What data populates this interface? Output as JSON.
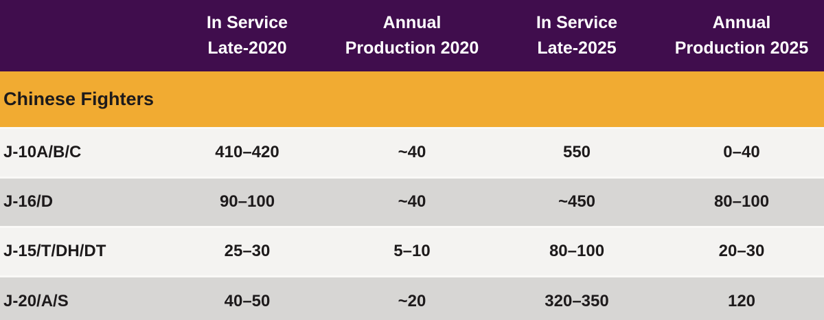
{
  "colors": {
    "header_bg": "#400D4D",
    "section_bg": "#F1AB32",
    "row_light_bg": "#F4F3F1",
    "row_dark_bg": "#D7D6D4",
    "separator": "#FAF9F7",
    "header_text": "#FFFFFF",
    "body_text": "#1D1A1B"
  },
  "table": {
    "header": {
      "columns": [
        {
          "line1": "",
          "line2": ""
        },
        {
          "line1": "In Service",
          "line2": "Late-2020"
        },
        {
          "line1": "Annual",
          "line2": "Production 2020"
        },
        {
          "line1": "In Service",
          "line2": "Late-2025"
        },
        {
          "line1": "Annual",
          "line2": "Production 2025"
        }
      ]
    },
    "section_label": "Chinese Fighters",
    "rows": [
      {
        "label": "J-10A/B/C",
        "values": [
          "410–420",
          "~40",
          "550",
          "0–40"
        ]
      },
      {
        "label": "J-16/D",
        "values": [
          "90–100",
          "~40",
          "~450",
          "80–100"
        ]
      },
      {
        "label": "J-15/T/DH/DT",
        "values": [
          "25–30",
          "5–10",
          "80–100",
          "20–30"
        ]
      },
      {
        "label": "J-20/A/S",
        "values": [
          "40–50",
          "~20",
          "320–350",
          "120"
        ]
      }
    ]
  },
  "chart_data": {
    "type": "table",
    "title": "",
    "columns": [
      "",
      "In Service Late-2020",
      "Annual Production 2020",
      "In Service Late-2025",
      "Annual Production 2025"
    ],
    "section": "Chinese Fighters",
    "rows": [
      [
        "J-10A/B/C",
        "410–420",
        "~40",
        "550",
        "0–40"
      ],
      [
        "J-16/D",
        "90–100",
        "~40",
        "~450",
        "80–100"
      ],
      [
        "J-15/T/DH/DT",
        "25–30",
        "5–10",
        "80–100",
        "20–30"
      ],
      [
        "J-20/A/S",
        "40–50",
        "~20",
        "320–350",
        "120"
      ]
    ]
  }
}
